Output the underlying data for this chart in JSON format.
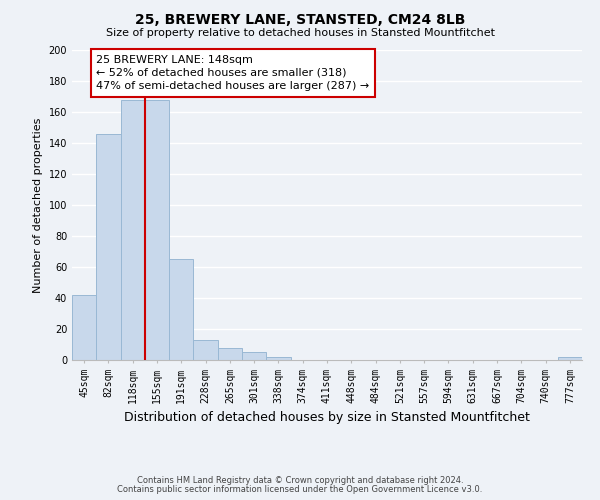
{
  "title": "25, BREWERY LANE, STANSTED, CM24 8LB",
  "subtitle": "Size of property relative to detached houses in Stansted Mountfitchet",
  "xlabel": "Distribution of detached houses by size in Stansted Mountfitchet",
  "ylabel": "Number of detached properties",
  "bin_labels": [
    "45sqm",
    "82sqm",
    "118sqm",
    "155sqm",
    "191sqm",
    "228sqm",
    "265sqm",
    "301sqm",
    "338sqm",
    "374sqm",
    "411sqm",
    "448sqm",
    "484sqm",
    "521sqm",
    "557sqm",
    "594sqm",
    "631sqm",
    "667sqm",
    "704sqm",
    "740sqm",
    "777sqm"
  ],
  "bar_values": [
    42,
    146,
    168,
    168,
    65,
    13,
    8,
    5,
    2,
    0,
    0,
    0,
    0,
    0,
    0,
    0,
    0,
    0,
    0,
    0,
    2
  ],
  "bar_color": "#c8d8eb",
  "bar_edge_color": "#99b8d4",
  "property_line_color": "#cc0000",
  "annotation_line1": "25 BREWERY LANE: 148sqm",
  "annotation_line2": "← 52% of detached houses are smaller (318)",
  "annotation_line3": "47% of semi-detached houses are larger (287) →",
  "annotation_box_color": "#ffffff",
  "annotation_box_edge_color": "#cc0000",
  "ylim": [
    0,
    200
  ],
  "yticks": [
    0,
    20,
    40,
    60,
    80,
    100,
    120,
    140,
    160,
    180,
    200
  ],
  "footer_line1": "Contains HM Land Registry data © Crown copyright and database right 2024.",
  "footer_line2": "Contains public sector information licensed under the Open Government Licence v3.0.",
  "bg_color": "#eef2f7",
  "plot_bg_color": "#eef2f7",
  "grid_color": "#ffffff",
  "title_fontsize": 10,
  "subtitle_fontsize": 8,
  "xlabel_fontsize": 9,
  "ylabel_fontsize": 8,
  "tick_fontsize": 7,
  "annotation_fontsize": 8,
  "footer_fontsize": 6
}
